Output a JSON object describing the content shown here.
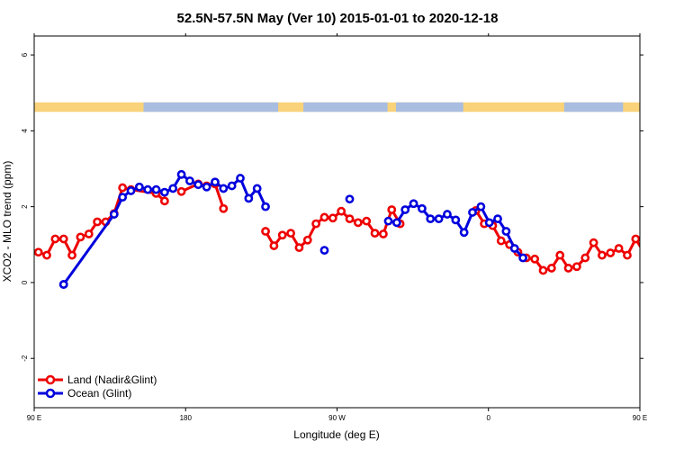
{
  "chart_data": {
    "type": "line",
    "title": "52.5N-57.5N May (Ver 10)   2015-01-01 to 2020-12-18",
    "xlabel": "Longitude (deg E)",
    "ylabel": "XCO2 - MLO trend (ppm)",
    "xlim": [
      90,
      450
    ],
    "ylim": [
      -3.3,
      6.5
    ],
    "x_ticks": [
      {
        "value": 90,
        "label": "90 E"
      },
      {
        "value": 180,
        "label": "180"
      },
      {
        "value": 270,
        "label": "90 W"
      },
      {
        "value": 360,
        "label": "0"
      },
      {
        "value": 450,
        "label": "90 E"
      }
    ],
    "x_ticks_top": [
      {
        "value": 90,
        "label": "90 E"
      },
      {
        "value": 180,
        "label": "180"
      },
      {
        "value": 270,
        "label": "90 W"
      },
      {
        "value": 360,
        "label": "0"
      },
      {
        "value": 450,
        "label": "90 E"
      }
    ],
    "y_ticks": [
      -2,
      0,
      2,
      4,
      6
    ],
    "land_mask_band": {
      "y_from": 4.5,
      "y_to": 4.75,
      "land_color": "#f9d27a",
      "ocean_color": "#a9bde0"
    },
    "legend": {
      "position": "bottom-left"
    },
    "series": [
      {
        "name": "Land (Nadir&Glint)",
        "color": "#ee0000",
        "x": [
          92.5,
          97.5,
          102.5,
          107.5,
          112.5,
          117.5,
          122.5,
          127.5,
          132.5,
          137.5,
          142.5,
          147.5,
          162.5,
          167.5,
          null,
          177.5,
          187.5,
          192.5,
          197.5,
          202.5,
          null,
          227.5,
          232.5,
          237.5,
          242.5,
          247.5,
          252.5,
          257.5,
          262.5,
          267.5,
          272.5,
          277.5,
          282.5,
          287.5,
          292.5,
          297.5,
          302.5,
          307.5,
          null,
          352.5,
          357.5,
          362.5,
          367.5,
          372.5,
          377.5,
          382.5,
          387.5,
          392.5,
          397.5,
          402.5,
          407.5,
          412.5,
          417.5,
          422.5,
          427.5,
          432.5,
          437.5,
          442.5,
          447.5,
          452.5,
          457.5,
          462.5,
          467.5,
          472.5,
          477.5,
          482.5,
          487.5,
          492.5,
          497.5,
          502.5,
          507.5,
          512.5,
          517.5,
          522.5,
          527.5,
          532.5
        ],
        "y": [
          0.8,
          0.72,
          1.15,
          1.15,
          0.72,
          1.2,
          1.28,
          1.6,
          1.6,
          1.82,
          2.5,
          2.45,
          2.35,
          2.15,
          null,
          2.4,
          2.6,
          2.55,
          2.6,
          1.95,
          null,
          1.35,
          0.97,
          1.25,
          1.3,
          0.92,
          1.12,
          1.55,
          1.72,
          1.7,
          1.88,
          1.68,
          1.58,
          1.62,
          1.3,
          1.28,
          1.92,
          1.55,
          null,
          1.9,
          1.55,
          1.5,
          1.1,
          1.0,
          0.8,
          0.65,
          0.62,
          0.32,
          0.38,
          0.72,
          0.38,
          0.42,
          0.65,
          1.05,
          0.72,
          0.78,
          0.9,
          0.72,
          1.15,
          0.78,
          0.72,
          1.15,
          1.15,
          0.72,
          1.2,
          1.28,
          1.6,
          1.6,
          1.82,
          2.5,
          2.45,
          2.35,
          2.15,
          2.15,
          2.5,
          2.55
        ]
      },
      {
        "name": "Ocean (Glint)",
        "color": "#0000dd",
        "x": [
          107.5,
          null,
          107.5,
          137.5,
          142.5,
          147.5,
          152.5,
          157.5,
          162.5,
          167.5,
          172.5,
          177.5,
          182.5,
          187.5,
          192.5,
          197.5,
          202.5,
          207.5,
          212.5,
          217.5,
          222.5,
          227.5,
          null,
          262.5,
          null,
          277.5,
          null,
          300.5,
          305.5,
          310.5,
          315.5,
          320.5,
          325.5,
          330.5,
          335.5,
          340.5,
          345.5,
          350.5,
          355.5,
          360.5,
          365.5,
          370.5,
          375.5,
          380.5,
          null,
          452.5,
          null,
          462.5,
          467.5,
          472.5,
          477.5,
          482.5,
          487.5,
          492.5,
          497.5,
          502.5,
          507.5,
          512.5,
          517.5
        ],
        "y": [
          -0.05,
          null,
          -0.05,
          1.8,
          2.25,
          2.42,
          2.52,
          2.45,
          2.45,
          2.38,
          2.48,
          2.85,
          2.68,
          2.58,
          2.52,
          2.65,
          2.48,
          2.55,
          2.75,
          2.22,
          2.48,
          2.0,
          null,
          0.85,
          null,
          2.2,
          null,
          1.62,
          1.58,
          1.92,
          2.08,
          1.95,
          1.68,
          1.68,
          1.8,
          1.65,
          1.32,
          1.85,
          2.0,
          1.58,
          1.68,
          1.35,
          0.9,
          0.65,
          null,
          -0.05,
          null,
          1.8,
          2.25,
          2.42,
          2.52,
          2.45,
          2.45,
          2.38,
          2.48,
          2.85,
          2.68,
          2.58,
          2.52
        ]
      }
    ]
  }
}
